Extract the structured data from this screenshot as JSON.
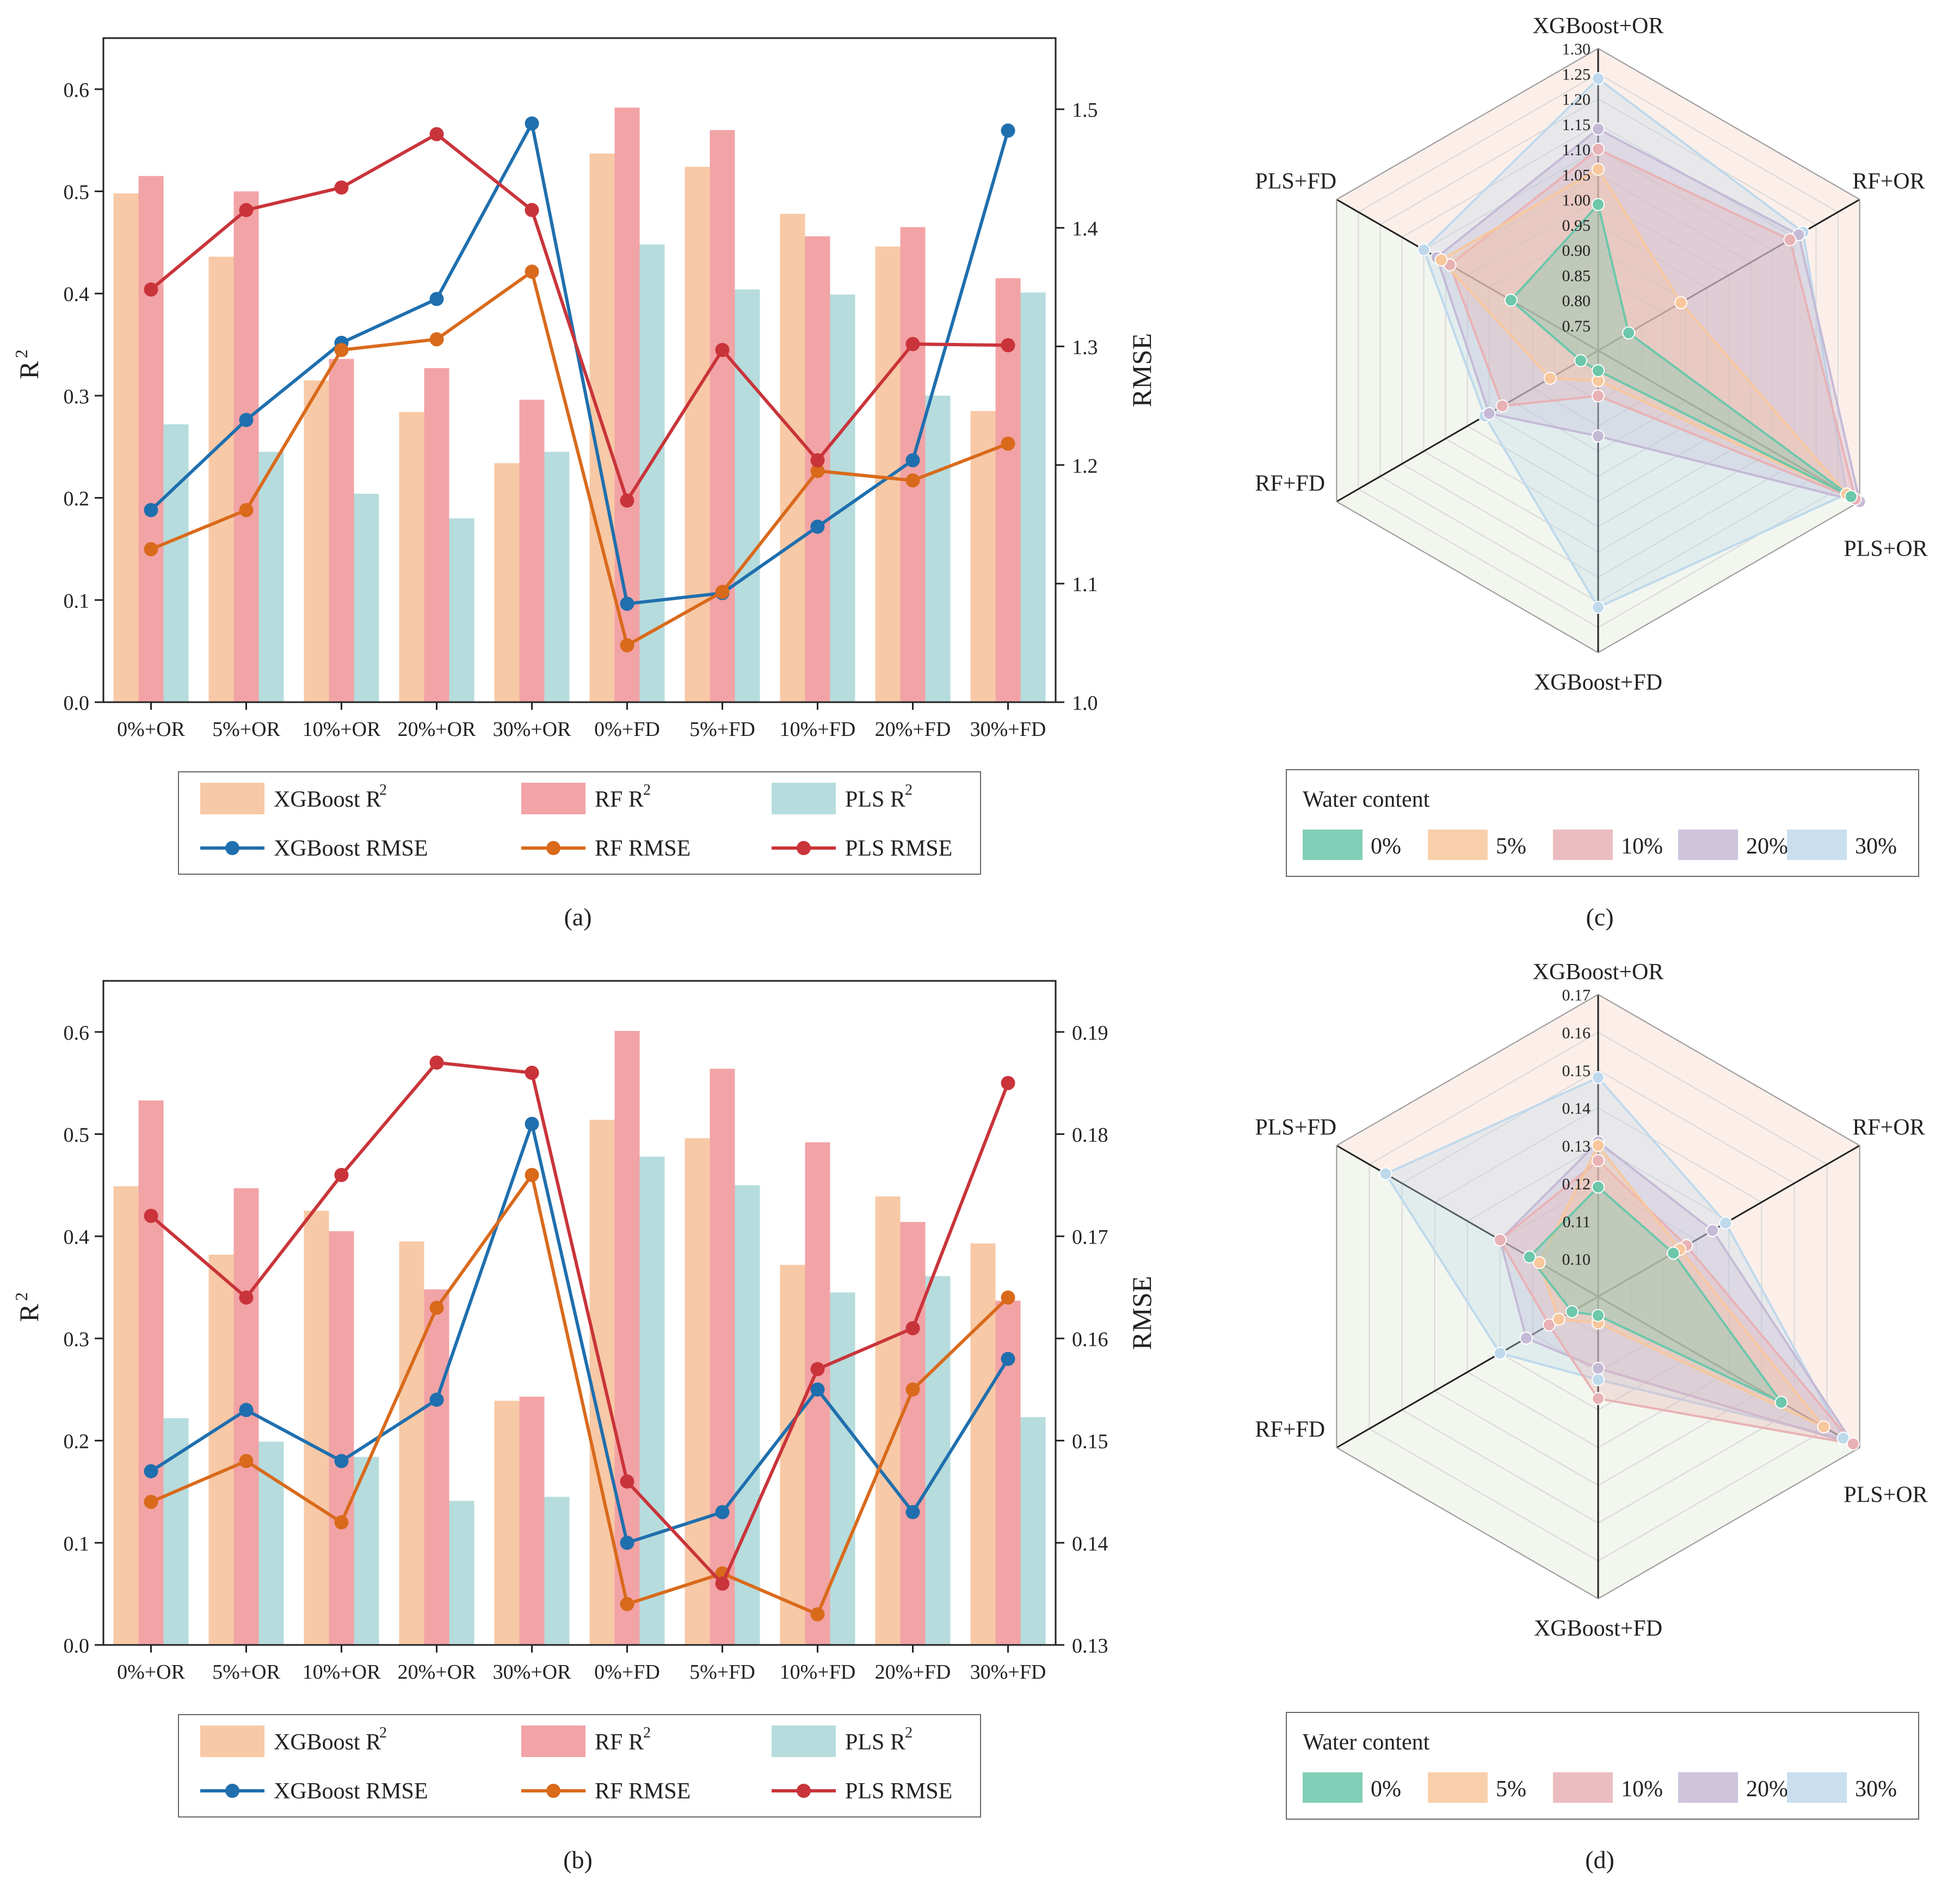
{
  "chart_data": [
    {
      "id": "a",
      "type": "bar",
      "caption": "(a)",
      "categories": [
        "0%+OR",
        "5%+OR",
        "10%+OR",
        "20%+OR",
        "30%+OR",
        "0%+FD",
        "5%+FD",
        "10%+FD",
        "20%+FD",
        "30%+FD"
      ],
      "ylabel": "R",
      "ylabel_sup": "2",
      "y2label": "RMSE",
      "ylim": [
        0,
        0.65
      ],
      "yticks": [
        "0.0",
        "0.1",
        "0.2",
        "0.3",
        "0.4",
        "0.5",
        "0.6"
      ],
      "y2lim": [
        1.0,
        1.56
      ],
      "y2ticks": [
        "1.0",
        "1.1",
        "1.2",
        "1.3",
        "1.4",
        "1.5"
      ],
      "bar_series": [
        {
          "name": "XGBoost R",
          "sup": "2",
          "color": "#f7c9a6",
          "values": [
            0.498,
            0.436,
            0.315,
            0.284,
            0.234,
            0.537,
            0.524,
            0.478,
            0.446,
            0.285
          ]
        },
        {
          "name": "RF R",
          "sup": "2",
          "color": "#f2a3a6",
          "values": [
            0.515,
            0.5,
            0.336,
            0.327,
            0.296,
            0.582,
            0.56,
            0.456,
            0.465,
            0.415
          ]
        },
        {
          "name": "PLS R",
          "sup": "2",
          "color": "#b6dcdd",
          "values": [
            0.272,
            0.245,
            0.204,
            0.18,
            0.245,
            0.448,
            0.404,
            0.399,
            0.3,
            0.401
          ]
        }
      ],
      "line_series": [
        {
          "name": "XGBoost RMSE",
          "color": "#1f6fae",
          "values": [
            1.162,
            1.238,
            1.303,
            1.34,
            1.488,
            1.083,
            1.092,
            1.148,
            1.204,
            1.482
          ]
        },
        {
          "name": "RF RMSE",
          "color": "#d96a1c",
          "values": [
            1.129,
            1.162,
            1.297,
            1.306,
            1.363,
            1.048,
            1.093,
            1.195,
            1.187,
            1.218
          ]
        },
        {
          "name": "PLS RMSE",
          "color": "#c9343a",
          "values": [
            1.348,
            1.415,
            1.434,
            1.479,
            1.415,
            1.17,
            1.297,
            1.204,
            1.302,
            1.301
          ]
        }
      ]
    },
    {
      "id": "b",
      "type": "bar",
      "caption": "(b)",
      "categories": [
        "0%+OR",
        "5%+OR",
        "10%+OR",
        "20%+OR",
        "30%+OR",
        "0%+FD",
        "5%+FD",
        "10%+FD",
        "20%+FD",
        "30%+FD"
      ],
      "ylabel": "R",
      "ylabel_sup": "2",
      "y2label": "RMSE",
      "ylim": [
        0,
        0.65
      ],
      "yticks": [
        "0.0",
        "0.1",
        "0.2",
        "0.3",
        "0.4",
        "0.5",
        "0.6"
      ],
      "y2lim": [
        0.13,
        0.195
      ],
      "y2ticks": [
        "0.13",
        "0.14",
        "0.15",
        "0.16",
        "0.17",
        "0.18",
        "0.19"
      ],
      "bar_series": [
        {
          "name": "XGBoost R",
          "sup": "2",
          "color": "#f7c9a6",
          "values": [
            0.449,
            0.382,
            0.425,
            0.395,
            0.239,
            0.514,
            0.496,
            0.372,
            0.439,
            0.393
          ]
        },
        {
          "name": "RF R",
          "sup": "2",
          "color": "#f2a3a6",
          "values": [
            0.533,
            0.447,
            0.405,
            0.348,
            0.243,
            0.601,
            0.564,
            0.492,
            0.414,
            0.337
          ]
        },
        {
          "name": "PLS R",
          "sup": "2",
          "color": "#b6dcdd",
          "values": [
            0.222,
            0.199,
            0.184,
            0.141,
            0.145,
            0.478,
            0.45,
            0.345,
            0.361,
            0.223
          ]
        }
      ],
      "line_series": [
        {
          "name": "XGBoost RMSE",
          "color": "#1f6fae",
          "values": [
            0.147,
            0.153,
            0.148,
            0.154,
            0.181,
            0.14,
            0.143,
            0.155,
            0.143,
            0.158
          ]
        },
        {
          "name": "RF RMSE",
          "color": "#d96a1c",
          "values": [
            0.144,
            0.148,
            0.142,
            0.163,
            0.176,
            0.134,
            0.137,
            0.133,
            0.155,
            0.164
          ]
        },
        {
          "name": "PLS RMSE",
          "color": "#c9343a",
          "values": [
            0.172,
            0.164,
            0.176,
            0.187,
            0.186,
            0.146,
            0.136,
            0.157,
            0.161,
            0.185
          ]
        }
      ]
    },
    {
      "id": "c",
      "type": "radar",
      "caption": "(c)",
      "axes": [
        "XGBoost+OR",
        "RF+OR",
        "PLS+OR",
        "XGBoost+FD",
        "RF+FD",
        "PLS+FD"
      ],
      "rlim": [
        0.7,
        1.3
      ],
      "rticks": [
        "0.75",
        "0.80",
        "0.85",
        "0.90",
        "0.95",
        "1.00",
        "1.05",
        "1.10",
        "1.15",
        "1.20",
        "1.25",
        "1.30"
      ],
      "legend_title": "Water content",
      "series": [
        {
          "name": "0%",
          "color": "#6cc7ab",
          "values": [
            0.99,
            0.77,
            1.28,
            0.74,
            0.74,
            0.9
          ]
        },
        {
          "name": "5%",
          "color": "#f8c79c",
          "values": [
            1.06,
            0.89,
            1.27,
            0.76,
            0.81,
            1.06
          ]
        },
        {
          "name": "10%",
          "color": "#e8b2b5",
          "values": [
            1.1,
            1.14,
            1.29,
            0.79,
            0.92,
            1.04
          ]
        },
        {
          "name": "20%",
          "color": "#c5bad6",
          "values": [
            1.14,
            1.16,
            1.3,
            0.87,
            0.95,
            1.07
          ]
        },
        {
          "name": "30%",
          "color": "#bfd9ec",
          "values": [
            1.24,
            1.17,
            1.27,
            1.21,
            0.96,
            1.1
          ]
        }
      ]
    },
    {
      "id": "d",
      "type": "radar",
      "caption": "(d)",
      "axes": [
        "XGBoost+OR",
        "RF+OR",
        "PLS+OR",
        "XGBoost+FD",
        "RF+FD",
        "PLS+FD"
      ],
      "rlim": [
        0.09,
        0.17
      ],
      "rticks": [
        "0.10",
        "0.11",
        "0.12",
        "0.13",
        "0.14",
        "0.15",
        "0.16",
        "0.17"
      ],
      "legend_title": "Water content",
      "series": [
        {
          "name": "0%",
          "color": "#6cc7ab",
          "values": [
            0.119,
            0.113,
            0.146,
            0.095,
            0.098,
            0.111
          ]
        },
        {
          "name": "5%",
          "color": "#f8c79c",
          "values": [
            0.13,
            0.115,
            0.159,
            0.097,
            0.102,
            0.108
          ]
        },
        {
          "name": "10%",
          "color": "#e8b2b5",
          "values": [
            0.126,
            0.117,
            0.168,
            0.117,
            0.105,
            0.12
          ]
        },
        {
          "name": "20%",
          "color": "#c5bad6",
          "values": [
            0.131,
            0.125,
            0.168,
            0.109,
            0.112,
            0.12
          ]
        },
        {
          "name": "30%",
          "color": "#bfd9ec",
          "values": [
            0.148,
            0.129,
            0.165,
            0.112,
            0.12,
            0.155
          ]
        }
      ]
    }
  ]
}
